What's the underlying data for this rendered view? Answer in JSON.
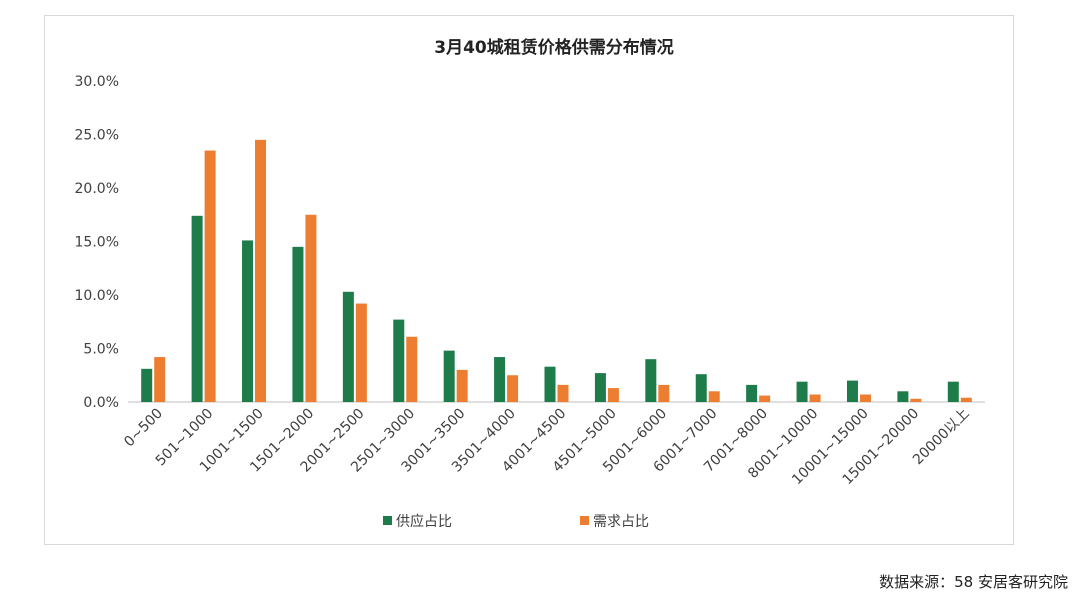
{
  "source_text": "数据来源：58 安居客研究院",
  "colors": {
    "supply": "#1e7b4a",
    "demand": "#ed7d31",
    "axis": "#bfbfbf"
  },
  "chart_data": {
    "type": "bar",
    "title": "3月40城租赁价格供需分布情况",
    "xlabel": "",
    "ylabel": "",
    "ylim": [
      0,
      30
    ],
    "yticks": [
      "0.0%",
      "5.0%",
      "10.0%",
      "15.0%",
      "20.0%",
      "25.0%",
      "30.0%"
    ],
    "legend_position": "bottom",
    "grid": false,
    "categories": [
      "0~500",
      "501~1000",
      "1001~1500",
      "1501~2000",
      "2001~2500",
      "2501~3000",
      "3001~3500",
      "3501~4000",
      "4001~4500",
      "4501~5000",
      "5001~6000",
      "6001~7000",
      "7001~8000",
      "8001~10000",
      "10001~15000",
      "15001~20000",
      "20000以上"
    ],
    "series": [
      {
        "name": "供应占比",
        "values": [
          3.1,
          17.4,
          15.1,
          14.5,
          10.3,
          7.7,
          4.8,
          4.2,
          3.3,
          2.7,
          4.0,
          2.6,
          1.6,
          1.9,
          2.0,
          1.0,
          1.9
        ]
      },
      {
        "name": "需求占比",
        "values": [
          4.2,
          23.5,
          24.5,
          17.5,
          9.2,
          6.1,
          3.0,
          2.5,
          1.6,
          1.3,
          1.6,
          1.0,
          0.6,
          0.7,
          0.7,
          0.3,
          0.4
        ]
      }
    ]
  }
}
